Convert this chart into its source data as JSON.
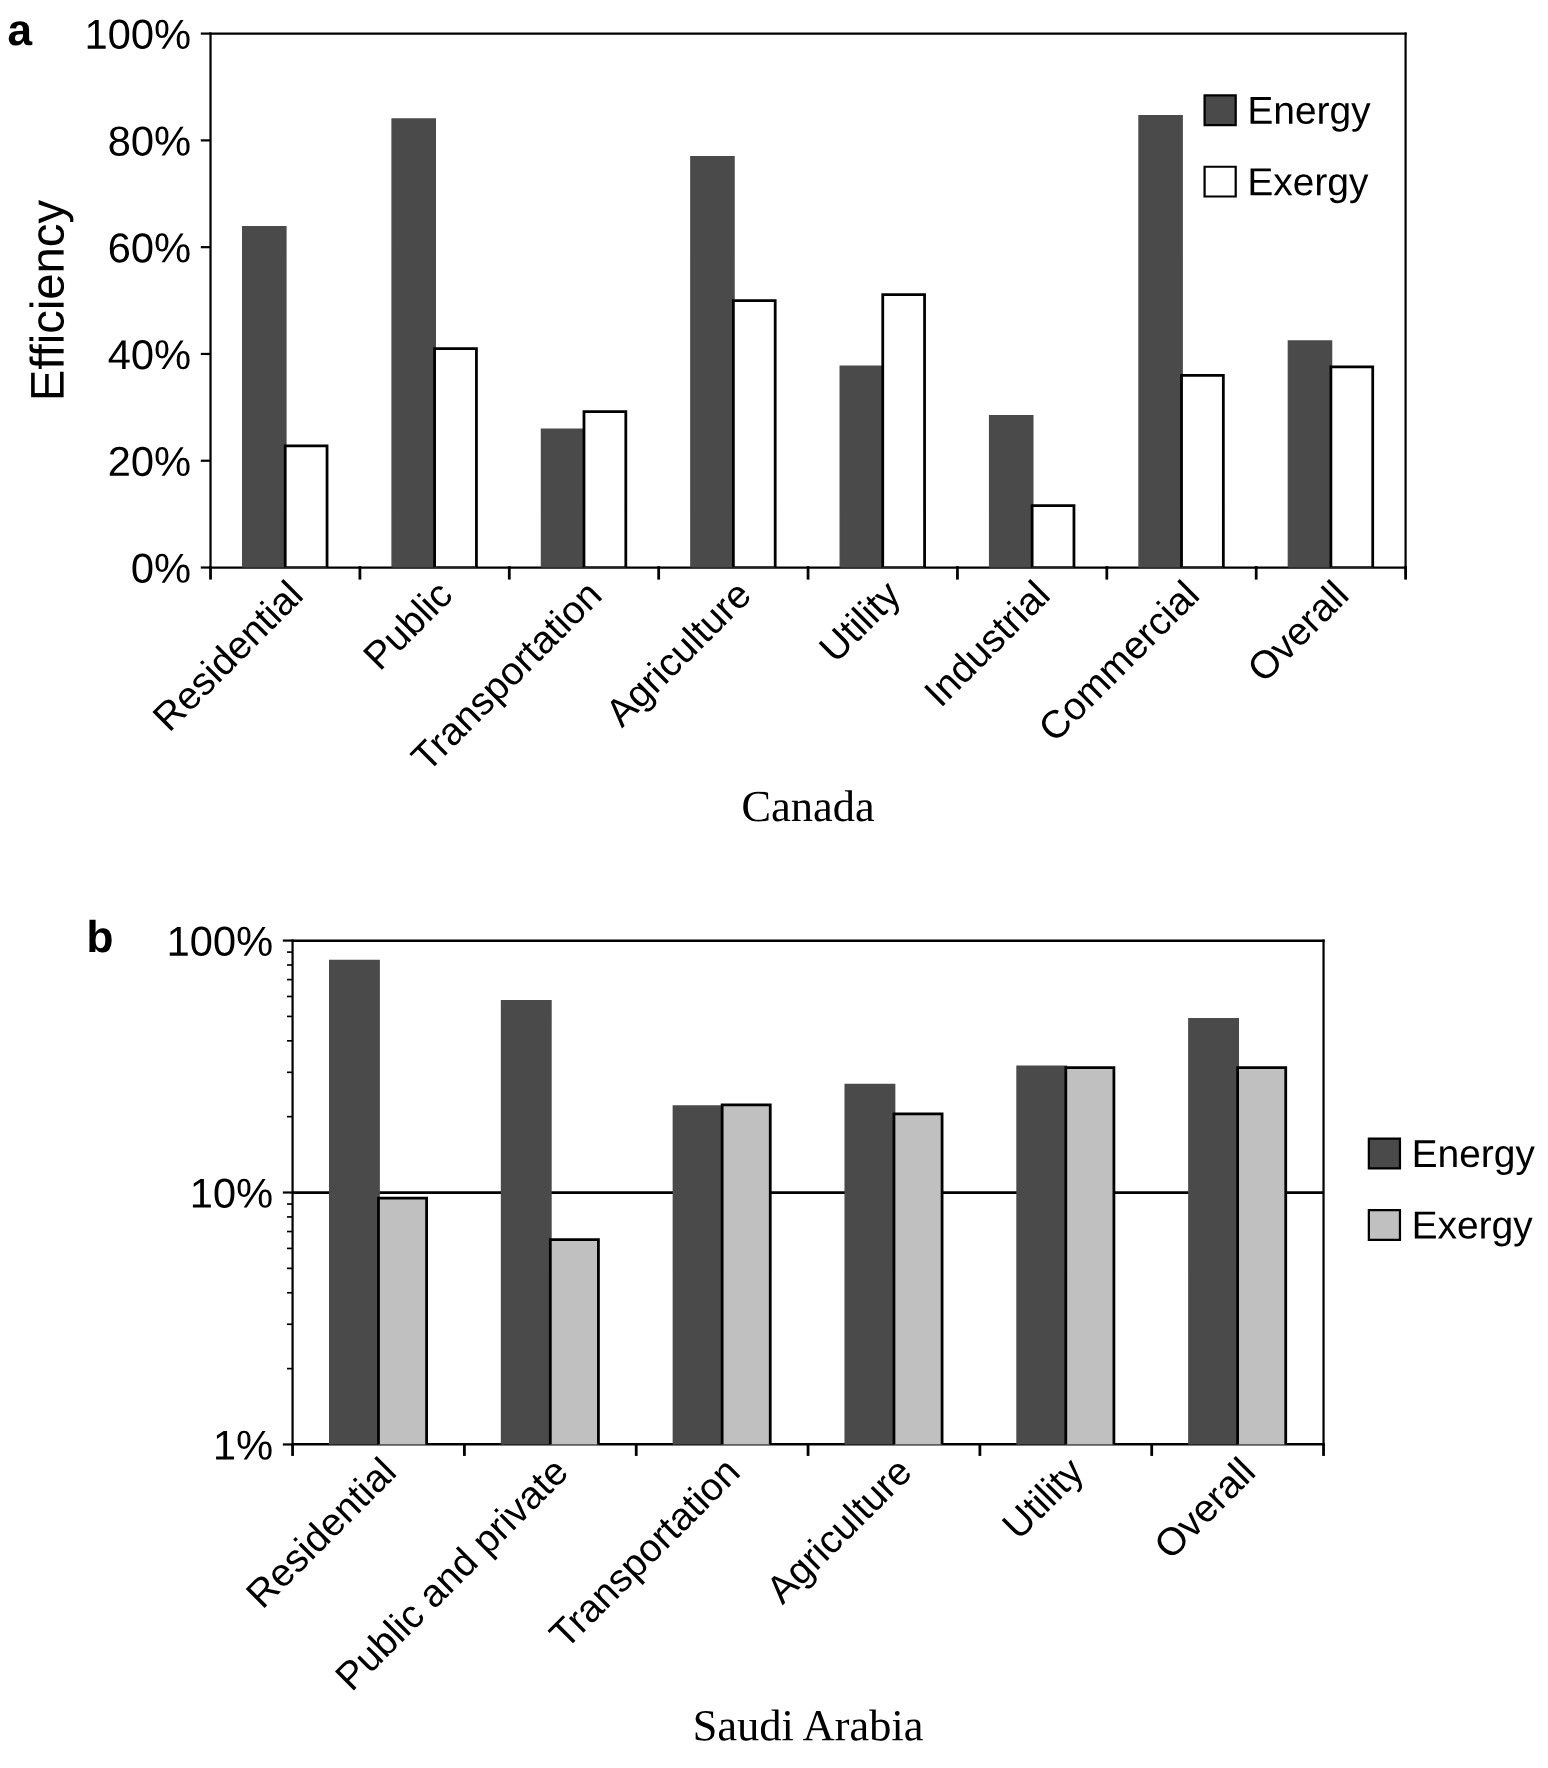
{
  "chart_data": [
    {
      "type": "bar",
      "title": "a",
      "ylabel": "Efficiency",
      "xlabel": "Canada",
      "categories": [
        "Residential",
        "Public",
        "Transportation",
        "Agriculture",
        "Utility",
        "Industrial",
        "Commercial",
        "Overall"
      ],
      "series": [
        {
          "name": "Energy",
          "color": "#4a4a4a",
          "values": [
            63.7,
            83.9,
            25.8,
            76.8,
            37.6,
            28.3,
            84.5,
            42.3
          ]
        },
        {
          "name": "Exergy",
          "color": "#ffffff",
          "values": [
            22.8,
            41.0,
            29.2,
            50.0,
            51.1,
            11.6,
            36.0,
            37.6
          ]
        }
      ],
      "ylim": [
        0,
        100
      ],
      "yticks": [
        {
          "value": 0,
          "label": "0%"
        },
        {
          "value": 20,
          "label": "20%"
        },
        {
          "value": 40,
          "label": "40%"
        },
        {
          "value": 60,
          "label": "60%"
        },
        {
          "value": 80,
          "label": "80%"
        },
        {
          "value": 100,
          "label": "100%"
        }
      ],
      "grid": false,
      "legend": "top right"
    },
    {
      "type": "bar",
      "title": "b",
      "xlabel": "Saudi Arabia",
      "log": "y",
      "categories": [
        "Residential",
        "Public and private",
        "Transportation",
        "Agriculture",
        "Utility",
        "Overall"
      ],
      "series": [
        {
          "name": "Energy",
          "color": "#4a4a4a",
          "values": [
            82.8,
            57.3,
            21.9,
            26.7,
            31.5,
            48.7
          ]
        },
        {
          "name": "Exergy",
          "color": "#c0c0c0",
          "values": [
            9.5,
            6.5,
            22.3,
            20.5,
            31.3,
            31.3
          ]
        }
      ],
      "ylim": [
        1,
        100
      ],
      "yticks": [
        {
          "value": 1,
          "label": "1%"
        },
        {
          "value": 10,
          "label": "10%"
        },
        {
          "value": 100,
          "label": "100%"
        }
      ],
      "grid": "y",
      "legend": "right"
    }
  ]
}
